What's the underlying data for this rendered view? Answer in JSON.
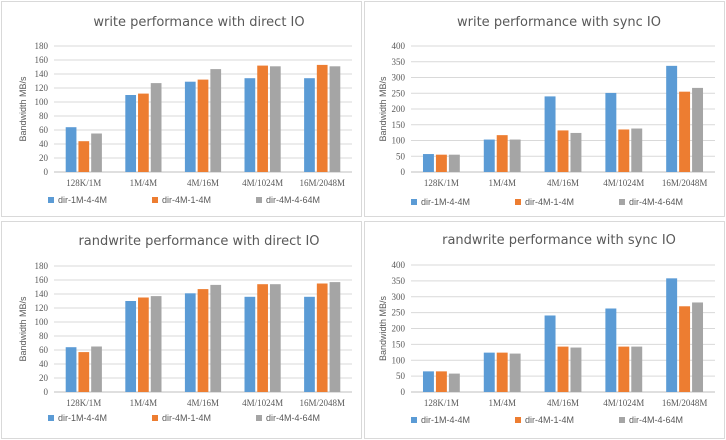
{
  "colors": {
    "series": [
      "#5b9bd5",
      "#ed7d31",
      "#a5a5a5"
    ],
    "grid": "#d9d9d9",
    "axis": "#bfbfbf",
    "text": "#595959"
  },
  "chart_data": [
    {
      "type": "bar",
      "title": "write performance with direct IO",
      "ylabel": "Bandwidth MB/s",
      "xlabel": "",
      "categories": [
        "128K/1M",
        "1M/4M",
        "4M/16M",
        "4M/1024M",
        "16M/2048M"
      ],
      "yticks": [
        0,
        20,
        40,
        60,
        80,
        100,
        120,
        140,
        160,
        180
      ],
      "ylim": [
        0,
        180
      ],
      "grid": true,
      "legend_position": "bottom",
      "series": [
        {
          "name": "dir-1M-4-4M",
          "values": [
            64,
            110,
            129,
            134,
            134
          ]
        },
        {
          "name": "dir-4M-1-4M",
          "values": [
            44,
            112,
            132,
            152,
            153
          ]
        },
        {
          "name": "dir-4M-4-64M",
          "values": [
            55,
            127,
            147,
            151,
            151
          ]
        }
      ]
    },
    {
      "type": "bar",
      "title": "write performance with sync IO",
      "ylabel": "Bandwidth MB/s",
      "xlabel": "",
      "categories": [
        "128K/1M",
        "1M/4M",
        "4M/16M",
        "4M/1024M",
        "16M/2048M"
      ],
      "yticks": [
        0,
        50,
        100,
        150,
        200,
        250,
        300,
        350,
        400
      ],
      "ylim": [
        0,
        400
      ],
      "grid": true,
      "legend_position": "bottom",
      "series": [
        {
          "name": "dir-1M-4-4M",
          "values": [
            57,
            103,
            240,
            251,
            337
          ]
        },
        {
          "name": "dir-4M-1-4M",
          "values": [
            55,
            117,
            132,
            135,
            255
          ]
        },
        {
          "name": "dir-4M-4-64M",
          "values": [
            55,
            103,
            124,
            138,
            267
          ]
        }
      ]
    },
    {
      "type": "bar",
      "title": "randwrite performance with direct IO",
      "ylabel": "Bandwidth MB/s",
      "xlabel": "",
      "categories": [
        "128K/1M",
        "1M/4M",
        "4M/16M",
        "4M/1024M",
        "16M/2048M"
      ],
      "yticks": [
        0,
        20,
        40,
        60,
        80,
        100,
        120,
        140,
        160,
        180
      ],
      "ylim": [
        0,
        180
      ],
      "grid": true,
      "legend_position": "bottom",
      "series": [
        {
          "name": "dir-1M-4-4M",
          "values": [
            64,
            130,
            141,
            136,
            136
          ]
        },
        {
          "name": "dir-4M-1-4M",
          "values": [
            57,
            135,
            147,
            154,
            155
          ]
        },
        {
          "name": "dir-4M-4-64M",
          "values": [
            65,
            137,
            153,
            154,
            157
          ]
        }
      ]
    },
    {
      "type": "bar",
      "title": "randwrite performance with sync IO",
      "ylabel": "Bandwidth MB/s",
      "xlabel": "",
      "categories": [
        "128K/1M",
        "1M/4M",
        "4M/16M",
        "4M/1024M",
        "16M/2048M"
      ],
      "yticks": [
        0,
        50,
        100,
        150,
        200,
        250,
        300,
        350,
        400
      ],
      "ylim": [
        0,
        400
      ],
      "grid": true,
      "legend_position": "bottom",
      "series": [
        {
          "name": "dir-1M-4-4M",
          "values": [
            65,
            124,
            241,
            263,
            358
          ]
        },
        {
          "name": "dir-4M-1-4M",
          "values": [
            65,
            124,
            143,
            143,
            270
          ]
        },
        {
          "name": "dir-4M-4-64M",
          "values": [
            58,
            121,
            140,
            143,
            282
          ]
        }
      ]
    }
  ]
}
